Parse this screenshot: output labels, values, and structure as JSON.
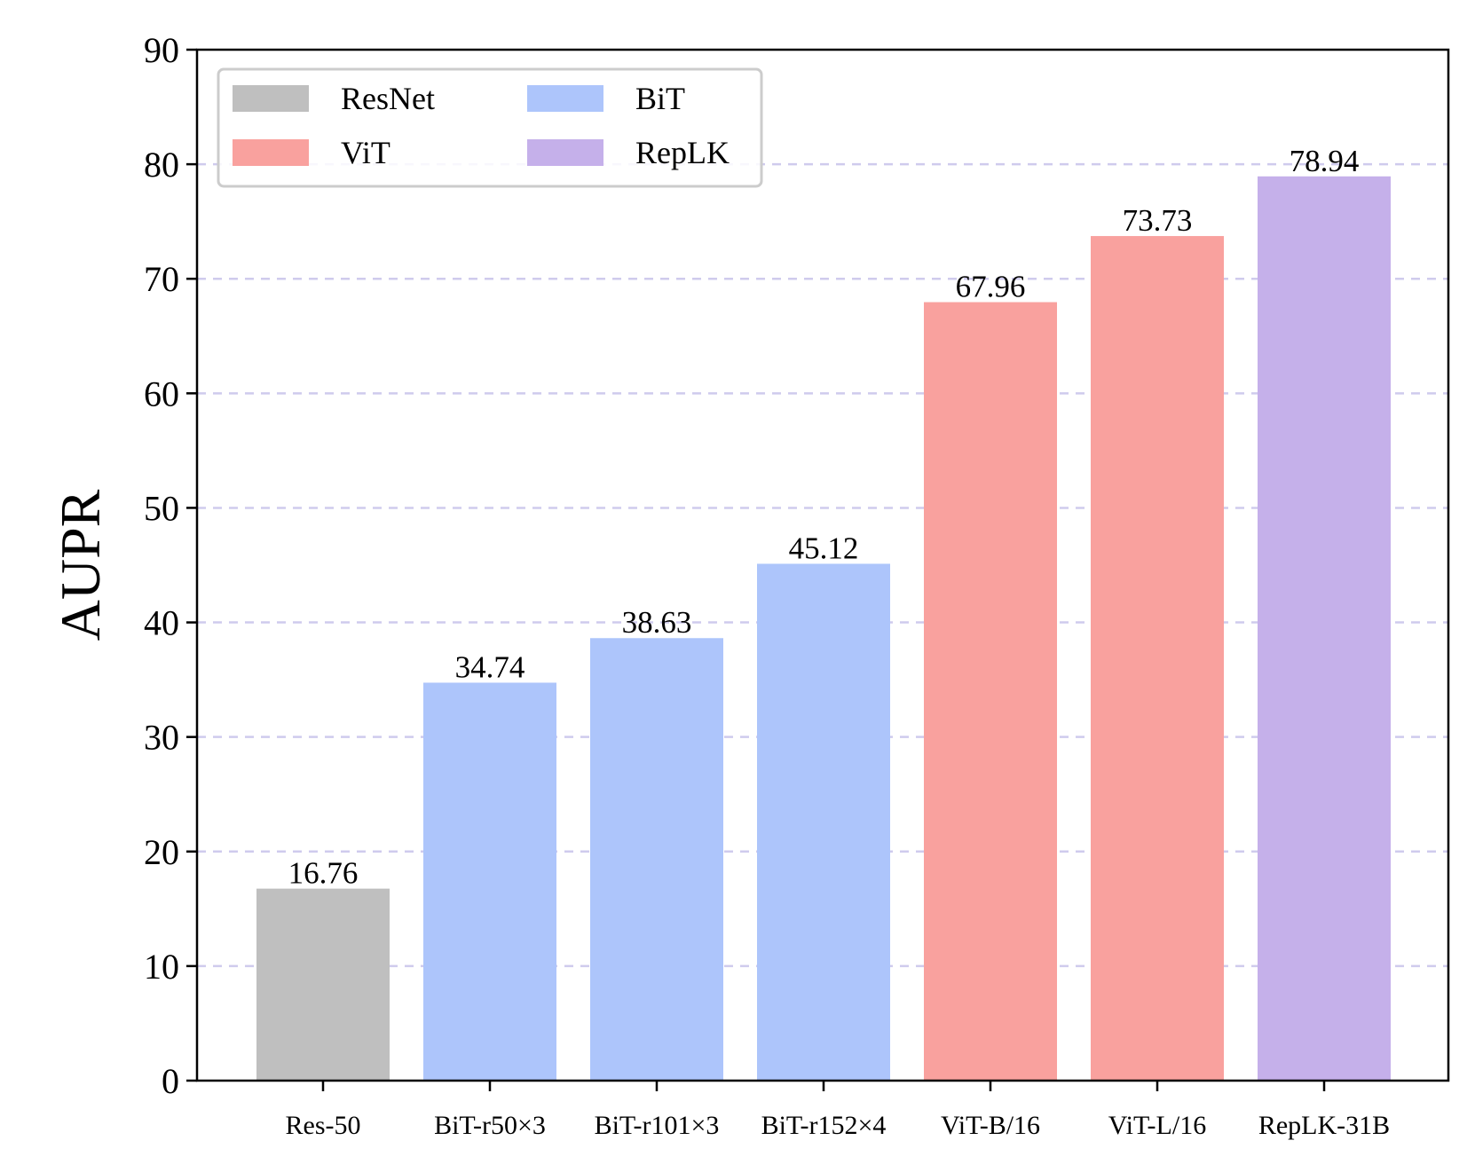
{
  "chart_data": {
    "type": "bar",
    "title": "",
    "xlabel": "",
    "ylabel": "AUPR",
    "ylim": [
      0,
      90
    ],
    "yticks": [
      0,
      10,
      20,
      30,
      40,
      50,
      60,
      70,
      80,
      90
    ],
    "grid": "y dashed",
    "categories": [
      "Res-50",
      "BiT-r50×3",
      "BiT-r101×3",
      "BiT-r152×4",
      "ViT-B/16",
      "ViT-L/16",
      "RepLK-31B"
    ],
    "values": [
      16.76,
      34.74,
      38.63,
      45.12,
      67.96,
      73.73,
      78.94
    ],
    "value_labels": [
      "16.76",
      "34.74",
      "38.63",
      "45.12",
      "67.96",
      "73.73",
      "78.94"
    ],
    "bar_groups": [
      "ResNet",
      "BiT",
      "BiT",
      "BiT",
      "ViT",
      "ViT",
      "RepLK"
    ],
    "legend": {
      "placement": "top-left",
      "columns": 2,
      "entries": [
        {
          "label": "ResNet",
          "color": "#bfbfbf"
        },
        {
          "label": "BiT",
          "color": "#adc5fb"
        },
        {
          "label": "ViT",
          "color": "#f9a19e"
        },
        {
          "label": "RepLK",
          "color": "#c5b0ea"
        }
      ]
    },
    "colors": {
      "ResNet": "#bfbfbf",
      "BiT": "#adc5fb",
      "ViT": "#f9a19e",
      "RepLK": "#c5b0ea",
      "grid": "#cfcbed"
    }
  }
}
